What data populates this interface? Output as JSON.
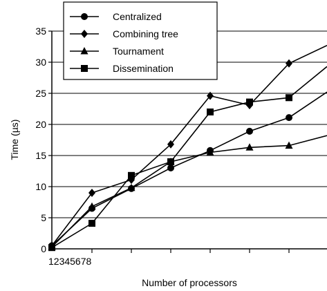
{
  "chart_data": {
    "type": "line",
    "xlabel": "Number of processors",
    "ylabel": "Time (µs)",
    "x_tick_labels": "12345678",
    "x": [
      1,
      2,
      3,
      4,
      5,
      6,
      7,
      8
    ],
    "ylim": [
      0,
      35
    ],
    "yticks": [
      "0",
      "5",
      "10",
      "15",
      "20",
      "25",
      "30",
      "35"
    ],
    "grid": "horizontal",
    "legend_position": "top-left",
    "series": [
      {
        "name": "Centralized",
        "marker": "circle",
        "values": [
          0.5,
          6.5,
          9.7,
          13.0,
          15.8,
          18.9,
          21.1,
          25.2
        ]
      },
      {
        "name": "Combining tree",
        "marker": "diamond",
        "values": [
          0.5,
          9.0,
          11.1,
          16.8,
          24.6,
          23.1,
          29.8,
          32.7
        ]
      },
      {
        "name": "Tournament",
        "marker": "triangle",
        "values": [
          0.3,
          6.8,
          9.8,
          14.0,
          15.5,
          16.3,
          16.6,
          18.2
        ]
      },
      {
        "name": "Dissemination",
        "marker": "square",
        "values": [
          0.2,
          4.1,
          11.8,
          14.0,
          22.0,
          23.6,
          24.3,
          29.3
        ]
      }
    ]
  }
}
